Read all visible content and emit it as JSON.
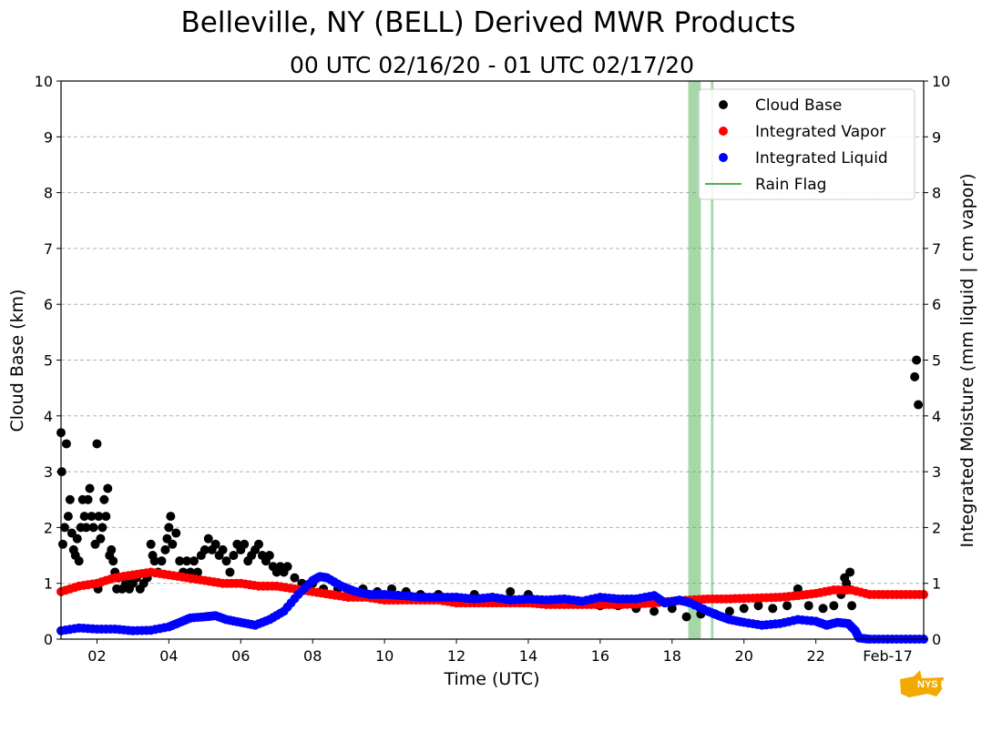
{
  "chart_data": {
    "type": "scatter",
    "title": "Belleville, NY (BELL) Derived MWR Products",
    "subtitle": "00 UTC 02/16/20 - 01 UTC 02/17/20",
    "xlabel": "Time (UTC)",
    "ylabel_left": "Cloud Base (km)",
    "ylabel_right": "Integrated Moisture (mm liquid | cm vapor)",
    "xlim": [
      1,
      25
    ],
    "ylim": [
      0,
      10
    ],
    "x_units": "hours since 00 UTC 02/16/20",
    "x_ticks": [
      {
        "x": 2,
        "label": "02"
      },
      {
        "x": 4,
        "label": "04"
      },
      {
        "x": 6,
        "label": "06"
      },
      {
        "x": 8,
        "label": "08"
      },
      {
        "x": 10,
        "label": "10"
      },
      {
        "x": 12,
        "label": "12"
      },
      {
        "x": 14,
        "label": "14"
      },
      {
        "x": 16,
        "label": "16"
      },
      {
        "x": 18,
        "label": "18"
      },
      {
        "x": 20,
        "label": "20"
      },
      {
        "x": 22,
        "label": "22"
      },
      {
        "x": 24,
        "label": "Feb-17"
      }
    ],
    "y_ticks": [
      "0",
      "1",
      "2",
      "3",
      "4",
      "5",
      "6",
      "7",
      "8",
      "9",
      "10"
    ],
    "grid": "horizontal dashed",
    "legend_position": "top-right",
    "series": [
      {
        "name": "Cloud Base",
        "color": "#000000",
        "points": [
          [
            1.0,
            3.7
          ],
          [
            1.02,
            3.0
          ],
          [
            1.05,
            1.7
          ],
          [
            1.1,
            2.0
          ],
          [
            1.15,
            3.5
          ],
          [
            1.2,
            2.2
          ],
          [
            1.25,
            2.5
          ],
          [
            1.3,
            1.9
          ],
          [
            1.35,
            1.6
          ],
          [
            1.4,
            1.5
          ],
          [
            1.45,
            1.8
          ],
          [
            1.5,
            1.4
          ],
          [
            1.55,
            2.0
          ],
          [
            1.6,
            2.5
          ],
          [
            1.65,
            2.2
          ],
          [
            1.7,
            2.0
          ],
          [
            1.75,
            2.5
          ],
          [
            1.8,
            2.7
          ],
          [
            1.85,
            2.2
          ],
          [
            1.9,
            2.0
          ],
          [
            1.95,
            1.7
          ],
          [
            2.0,
            3.5
          ],
          [
            2.03,
            0.9
          ],
          [
            2.05,
            2.2
          ],
          [
            2.1,
            1.8
          ],
          [
            2.15,
            2.0
          ],
          [
            2.2,
            2.5
          ],
          [
            2.25,
            2.2
          ],
          [
            2.3,
            2.7
          ],
          [
            2.35,
            1.5
          ],
          [
            2.4,
            1.6
          ],
          [
            2.45,
            1.4
          ],
          [
            2.5,
            1.2
          ],
          [
            2.55,
            0.9
          ],
          [
            2.6,
            1.1
          ],
          [
            2.7,
            0.9
          ],
          [
            2.8,
            1.0
          ],
          [
            2.9,
            0.9
          ],
          [
            3.0,
            1.0
          ],
          [
            3.1,
            1.1
          ],
          [
            3.2,
            0.9
          ],
          [
            3.3,
            1.0
          ],
          [
            3.4,
            1.1
          ],
          [
            3.5,
            1.7
          ],
          [
            3.55,
            1.5
          ],
          [
            3.6,
            1.4
          ],
          [
            3.7,
            1.2
          ],
          [
            3.8,
            1.4
          ],
          [
            3.9,
            1.6
          ],
          [
            3.95,
            1.8
          ],
          [
            4.0,
            2.0
          ],
          [
            4.05,
            2.2
          ],
          [
            4.1,
            1.7
          ],
          [
            4.2,
            1.9
          ],
          [
            4.3,
            1.4
          ],
          [
            4.4,
            1.2
          ],
          [
            4.5,
            1.4
          ],
          [
            4.6,
            1.2
          ],
          [
            4.7,
            1.4
          ],
          [
            4.8,
            1.2
          ],
          [
            4.9,
            1.5
          ],
          [
            5.0,
            1.6
          ],
          [
            5.1,
            1.8
          ],
          [
            5.2,
            1.6
          ],
          [
            5.3,
            1.7
          ],
          [
            5.4,
            1.5
          ],
          [
            5.5,
            1.6
          ],
          [
            5.6,
            1.4
          ],
          [
            5.7,
            1.2
          ],
          [
            5.8,
            1.5
          ],
          [
            5.9,
            1.7
          ],
          [
            6.0,
            1.6
          ],
          [
            6.1,
            1.7
          ],
          [
            6.2,
            1.4
          ],
          [
            6.3,
            1.5
          ],
          [
            6.4,
            1.6
          ],
          [
            6.5,
            1.7
          ],
          [
            6.6,
            1.5
          ],
          [
            6.7,
            1.4
          ],
          [
            6.8,
            1.5
          ],
          [
            6.9,
            1.3
          ],
          [
            7.0,
            1.2
          ],
          [
            7.1,
            1.3
          ],
          [
            7.2,
            1.2
          ],
          [
            7.3,
            1.3
          ],
          [
            7.5,
            1.1
          ],
          [
            7.7,
            1.0
          ],
          [
            8.0,
            1.0
          ],
          [
            8.3,
            0.9
          ],
          [
            8.7,
            0.9
          ],
          [
            9.0,
            0.85
          ],
          [
            9.4,
            0.9
          ],
          [
            9.8,
            0.85
          ],
          [
            10.2,
            0.9
          ],
          [
            10.6,
            0.85
          ],
          [
            11.0,
            0.8
          ],
          [
            11.5,
            0.8
          ],
          [
            12.0,
            0.75
          ],
          [
            12.5,
            0.8
          ],
          [
            13.0,
            0.75
          ],
          [
            13.5,
            0.85
          ],
          [
            14.0,
            0.8
          ],
          [
            14.5,
            0.7
          ],
          [
            15.0,
            0.65
          ],
          [
            15.5,
            0.65
          ],
          [
            16.0,
            0.6
          ],
          [
            16.5,
            0.6
          ],
          [
            17.0,
            0.55
          ],
          [
            17.5,
            0.5
          ],
          [
            18.0,
            0.55
          ],
          [
            18.4,
            0.4
          ],
          [
            18.8,
            0.45
          ],
          [
            19.2,
            0.45
          ],
          [
            19.6,
            0.5
          ],
          [
            20.0,
            0.55
          ],
          [
            20.4,
            0.6
          ],
          [
            20.8,
            0.55
          ],
          [
            21.2,
            0.6
          ],
          [
            21.5,
            0.9
          ],
          [
            21.8,
            0.6
          ],
          [
            22.2,
            0.55
          ],
          [
            22.5,
            0.6
          ],
          [
            22.7,
            0.8
          ],
          [
            22.8,
            1.1
          ],
          [
            22.85,
            1.0
          ],
          [
            22.9,
            0.9
          ],
          [
            22.95,
            1.2
          ],
          [
            23.0,
            0.6
          ],
          [
            24.75,
            4.7
          ],
          [
            24.8,
            5.0
          ],
          [
            24.85,
            4.2
          ]
        ]
      },
      {
        "name": "Integrated Vapor",
        "color": "#ff0000",
        "points": [
          [
            1.0,
            0.85
          ],
          [
            1.5,
            0.95
          ],
          [
            2.0,
            1.0
          ],
          [
            2.5,
            1.1
          ],
          [
            3.0,
            1.15
          ],
          [
            3.5,
            1.2
          ],
          [
            4.0,
            1.15
          ],
          [
            4.5,
            1.1
          ],
          [
            5.0,
            1.05
          ],
          [
            5.5,
            1.0
          ],
          [
            6.0,
            1.0
          ],
          [
            6.5,
            0.95
          ],
          [
            7.0,
            0.95
          ],
          [
            7.5,
            0.9
          ],
          [
            8.0,
            0.85
          ],
          [
            8.5,
            0.8
          ],
          [
            9.0,
            0.75
          ],
          [
            9.5,
            0.75
          ],
          [
            10.0,
            0.7
          ],
          [
            10.5,
            0.7
          ],
          [
            11.0,
            0.7
          ],
          [
            11.5,
            0.7
          ],
          [
            12.0,
            0.65
          ],
          [
            12.5,
            0.65
          ],
          [
            13.0,
            0.65
          ],
          [
            13.5,
            0.65
          ],
          [
            14.0,
            0.65
          ],
          [
            14.5,
            0.62
          ],
          [
            15.0,
            0.62
          ],
          [
            15.5,
            0.62
          ],
          [
            16.0,
            0.62
          ],
          [
            16.5,
            0.62
          ],
          [
            17.0,
            0.63
          ],
          [
            17.5,
            0.65
          ],
          [
            18.0,
            0.68
          ],
          [
            18.5,
            0.7
          ],
          [
            19.0,
            0.72
          ],
          [
            19.5,
            0.72
          ],
          [
            20.0,
            0.73
          ],
          [
            20.5,
            0.74
          ],
          [
            21.0,
            0.75
          ],
          [
            21.5,
            0.78
          ],
          [
            22.0,
            0.82
          ],
          [
            22.5,
            0.88
          ],
          [
            23.0,
            0.88
          ],
          [
            23.5,
            0.8
          ],
          [
            24.0,
            0.8
          ],
          [
            24.5,
            0.8
          ],
          [
            25.0,
            0.8
          ]
        ]
      },
      {
        "name": "Integrated Liquid",
        "color": "#0000ff",
        "points": [
          [
            1.0,
            0.15
          ],
          [
            1.5,
            0.2
          ],
          [
            2.0,
            0.18
          ],
          [
            2.5,
            0.18
          ],
          [
            3.0,
            0.15
          ],
          [
            3.5,
            0.16
          ],
          [
            4.0,
            0.22
          ],
          [
            4.3,
            0.3
          ],
          [
            4.6,
            0.38
          ],
          [
            5.0,
            0.4
          ],
          [
            5.3,
            0.42
          ],
          [
            5.6,
            0.35
          ],
          [
            6.0,
            0.3
          ],
          [
            6.4,
            0.25
          ],
          [
            6.8,
            0.35
          ],
          [
            7.2,
            0.5
          ],
          [
            7.6,
            0.8
          ],
          [
            8.0,
            1.05
          ],
          [
            8.2,
            1.12
          ],
          [
            8.4,
            1.1
          ],
          [
            8.8,
            0.95
          ],
          [
            9.2,
            0.85
          ],
          [
            9.6,
            0.8
          ],
          [
            10.0,
            0.8
          ],
          [
            10.5,
            0.78
          ],
          [
            11.0,
            0.75
          ],
          [
            11.5,
            0.75
          ],
          [
            12.0,
            0.75
          ],
          [
            12.5,
            0.72
          ],
          [
            13.0,
            0.75
          ],
          [
            13.5,
            0.7
          ],
          [
            14.0,
            0.72
          ],
          [
            14.5,
            0.7
          ],
          [
            15.0,
            0.72
          ],
          [
            15.5,
            0.68
          ],
          [
            16.0,
            0.75
          ],
          [
            16.5,
            0.72
          ],
          [
            17.0,
            0.72
          ],
          [
            17.5,
            0.78
          ],
          [
            17.8,
            0.65
          ],
          [
            18.2,
            0.7
          ],
          [
            18.5,
            0.65
          ],
          [
            19.0,
            0.5
          ],
          [
            19.3,
            0.42
          ],
          [
            19.6,
            0.35
          ],
          [
            20.0,
            0.3
          ],
          [
            20.5,
            0.25
          ],
          [
            21.0,
            0.28
          ],
          [
            21.5,
            0.35
          ],
          [
            22.0,
            0.32
          ],
          [
            22.3,
            0.25
          ],
          [
            22.6,
            0.3
          ],
          [
            22.9,
            0.28
          ],
          [
            23.1,
            0.15
          ],
          [
            23.2,
            0.02
          ],
          [
            23.5,
            0.0
          ],
          [
            24.0,
            0.0
          ],
          [
            24.5,
            0.0
          ],
          [
            25.0,
            0.0
          ]
        ]
      },
      {
        "name": "Rain Flag",
        "color": "#4caf50",
        "type": "span",
        "spans": [
          [
            18.45,
            18.8
          ],
          [
            19.08,
            19.15
          ]
        ]
      }
    ]
  },
  "logo_text": "NYS Mesonet"
}
